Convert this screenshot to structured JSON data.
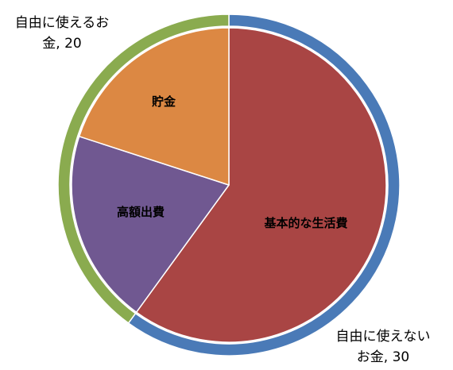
{
  "chart_data": {
    "type": "pie",
    "title": "",
    "outer_ring": {
      "categories": [
        "自由に使えないお金",
        "自由に使えるお金"
      ],
      "values": [
        30,
        20
      ],
      "labels": [
        [
          "自由に使えない",
          "お金, 30"
        ],
        [
          "自由に使えるお",
          "金, 20"
        ]
      ],
      "colors": [
        "#4a7ab7",
        "#8aab4f"
      ]
    },
    "inner_pie": {
      "categories": [
        "基本的な生活費",
        "高額出費",
        "貯金"
      ],
      "values": [
        30,
        10,
        10
      ],
      "colors": [
        "#a94544",
        "#705891",
        "#dc8843"
      ]
    }
  }
}
